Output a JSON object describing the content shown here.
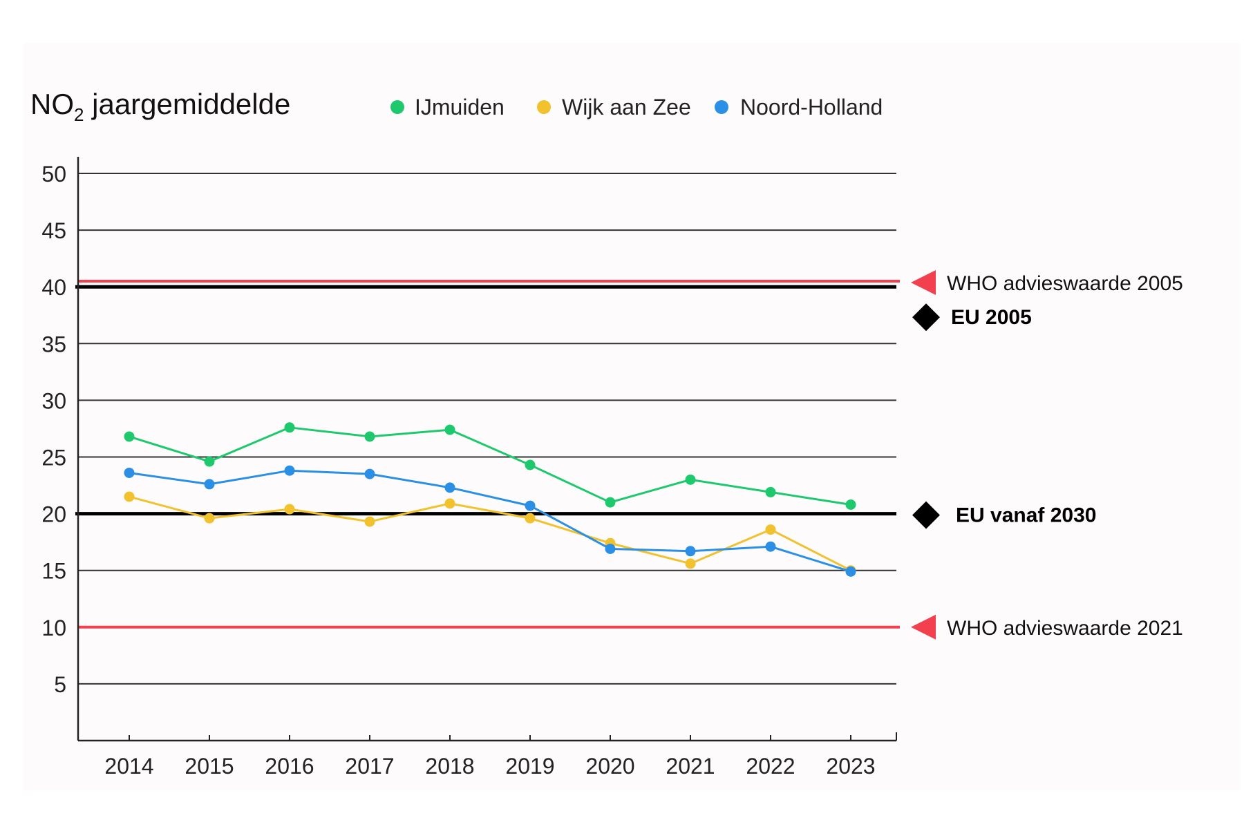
{
  "chart_data": {
    "type": "line",
    "title": {
      "prefix": "NO",
      "subscript": "2",
      "suffix": " jaargemiddelde"
    },
    "xlabel": "",
    "ylabel": "",
    "ylim": [
      0,
      50
    ],
    "yticks": [
      5,
      10,
      15,
      20,
      25,
      30,
      35,
      40,
      45,
      50
    ],
    "categories": [
      "2014",
      "2015",
      "2016",
      "2017",
      "2018",
      "2019",
      "2020",
      "2021",
      "2022",
      "2023"
    ],
    "legend_position": "top",
    "series": [
      {
        "name": "IJmuiden",
        "color": "#1ec96e",
        "values": [
          26.8,
          24.6,
          27.6,
          26.8,
          27.4,
          24.3,
          21.0,
          23.0,
          21.9,
          20.8
        ]
      },
      {
        "name": "Wijk aan Zee",
        "color": "#f2c12e",
        "values": [
          21.5,
          19.6,
          20.4,
          19.3,
          20.9,
          19.6,
          17.4,
          15.6,
          18.6,
          15.0
        ]
      },
      {
        "name": "Noord-Holland",
        "color": "#2b8fe5",
        "values": [
          23.6,
          22.6,
          23.8,
          23.5,
          22.3,
          20.7,
          16.9,
          16.7,
          17.1,
          14.9
        ]
      }
    ],
    "reference_lines": [
      {
        "label": "WHO advieswaarde 2005",
        "value": 40.5,
        "color": "#f2404e",
        "marker": "triangle"
      },
      {
        "label": "EU 2005",
        "value": 40,
        "color": "#000000",
        "marker": "diamond"
      },
      {
        "label": "EU vanaf 2030",
        "value": 20,
        "color": "#000000",
        "marker": "diamond"
      },
      {
        "label": "WHO advieswaarde 2021",
        "value": 10,
        "color": "#f2404e",
        "marker": "triangle"
      }
    ],
    "colors": {
      "grid": "#333333",
      "axis": "#222222"
    }
  }
}
